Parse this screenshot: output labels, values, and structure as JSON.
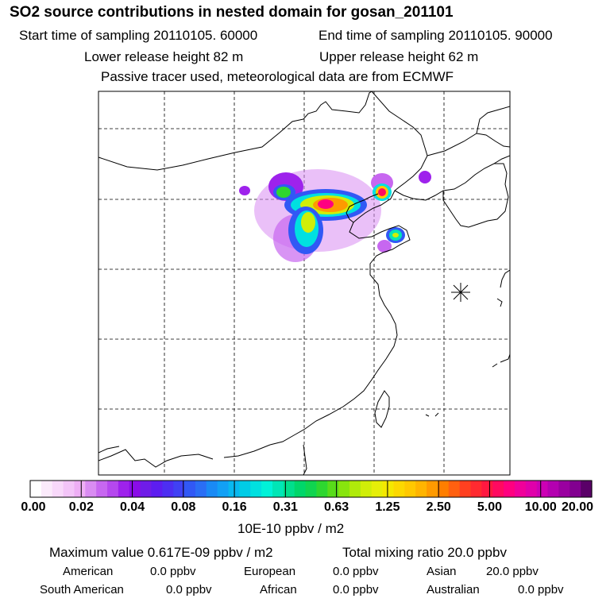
{
  "header": {
    "title": "SO2 source contributions in nested domain for gosan_201101",
    "start_time": "Start time of sampling 20110105. 60000",
    "end_time": "End time of sampling 20110105. 90000",
    "lower_height": "Lower release height   82 m",
    "upper_height": "Upper release height   62 m",
    "note": "Passive tracer used, meteorological data are from ECMWF"
  },
  "colorbar": {
    "tick_labels": [
      "0.00",
      "0.02",
      "0.04",
      "0.08",
      "0.16",
      "0.31",
      "0.63",
      "1.25",
      "2.50",
      "5.00",
      "10.00",
      "20.00"
    ],
    "colors": [
      "#ffffff",
      "#fbeafb",
      "#f8d8fa",
      "#f3c4f8",
      "#eeaef5",
      "#d98cf2",
      "#c767f0",
      "#b548ee",
      "#9e22ec",
      "#8a0ce8",
      "#6f1ce8",
      "#5d1df0",
      "#4d2ef2",
      "#4041f4",
      "#3158f5",
      "#2a6ef5",
      "#1a8af5",
      "#12a0f5",
      "#08b8f0",
      "#00cce6",
      "#00e0e0",
      "#00f2d8",
      "#00e6b6",
      "#00de8c",
      "#00d66a",
      "#10d450",
      "#2ed630",
      "#58dc1a",
      "#88e40e",
      "#b0ea0a",
      "#d0ee08",
      "#e6ee08",
      "#f4e800",
      "#fcd800",
      "#ffc800",
      "#ffb400",
      "#ff9a00",
      "#ff7e00",
      "#ff6010",
      "#ff4020",
      "#ff2a30",
      "#ff1840",
      "#ff0a60",
      "#ff0080",
      "#f0009a",
      "#e000aa",
      "#cc00b4",
      "#b400b0",
      "#9a00a0",
      "#820090",
      "#5a0068"
    ],
    "unit": "10E-10 ppbv / m2"
  },
  "summary": {
    "max_value": "Maximum value  0.617E-09 ppbv / m2",
    "total_mixing": "Total mixing ratio      20.0 ppbv",
    "regions": [
      {
        "name": "American",
        "value": "0.0 ppbv"
      },
      {
        "name": "European",
        "value": "0.0 ppbv"
      },
      {
        "name": "Asian",
        "value": "20.0 ppbv"
      },
      {
        "name": "South American",
        "value": "0.0 ppbv"
      },
      {
        "name": "African",
        "value": "0.0 ppbv"
      },
      {
        "name": "Australian",
        "value": "0.0 ppbv"
      }
    ]
  },
  "map": {
    "receptor_marker": "receptor-star",
    "colors": {
      "frame": "#000000",
      "grid": "#000000",
      "coast": "#000000"
    }
  }
}
